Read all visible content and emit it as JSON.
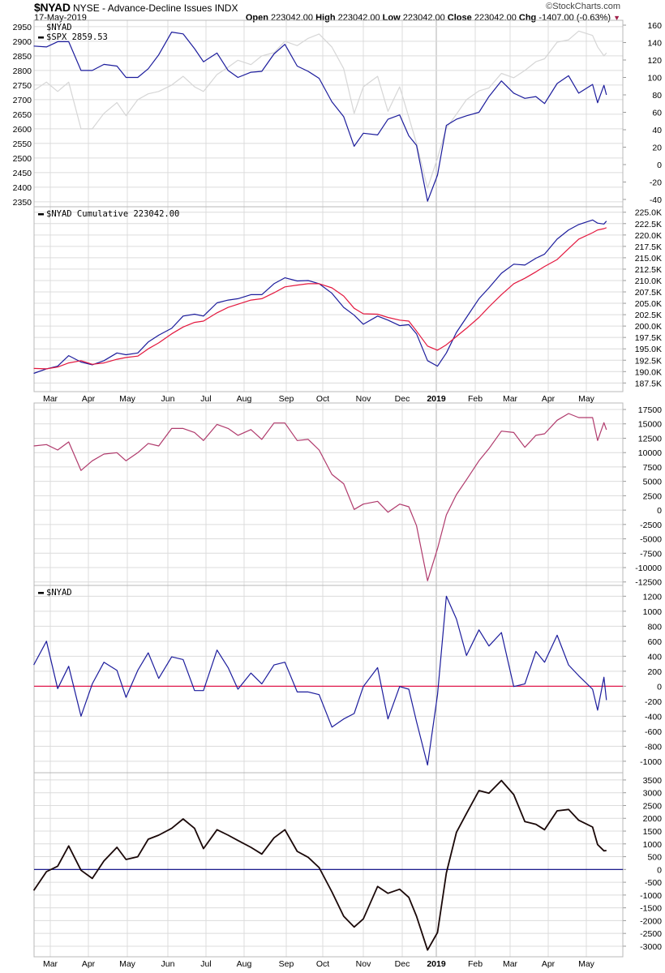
{
  "header": {
    "symbol": "$NYAD",
    "description": "NYSE - Advance-Decline Issues",
    "exchange": "INDX",
    "date": "17-May-2019",
    "open_label": "Open",
    "open": "223042.00",
    "high_label": "High",
    "high": "223042.00",
    "low_label": "Low",
    "low": "223042.00",
    "close_label": "Close",
    "close": "223042.00",
    "chg_label": "Chg",
    "chg": "-1407.00 (-0.63%)",
    "chg_direction_icon": "down-triangle-icon",
    "brand": "©StockCharts.com"
  },
  "colors": {
    "nyad": "#1c1c9c",
    "spx": "#d6d6d6",
    "ma": "#e3173e",
    "panel3": "#b03a6c",
    "oscillator": "#1c1c9c",
    "zero_line_red": "#e0003a",
    "smoothed": "#1a0808",
    "zero_line_navy": "#000080",
    "grid": "#dcdcdc"
  },
  "chart_data": {
    "type": "line",
    "x_month_labels": [
      "Mar",
      "Apr",
      "May",
      "Jun",
      "Jul",
      "Aug",
      "Sep",
      "Oct",
      "Nov",
      "Dec",
      "2019",
      "Feb",
      "Mar",
      "Apr",
      "May"
    ],
    "dates": [
      "2018-02-16",
      "2018-02-26",
      "2018-03-07",
      "2018-03-16",
      "2018-03-26",
      "2018-04-04",
      "2018-04-13",
      "2018-04-23",
      "2018-04-30",
      "2018-05-09",
      "2018-05-17",
      "2018-05-25",
      "2018-06-04",
      "2018-06-13",
      "2018-06-22",
      "2018-06-29",
      "2018-07-10",
      "2018-07-19",
      "2018-07-27",
      "2018-08-06",
      "2018-08-14",
      "2018-08-23",
      "2018-08-31",
      "2018-09-10",
      "2018-09-19",
      "2018-09-28",
      "2018-10-08",
      "2018-10-17",
      "2018-10-25",
      "2018-11-01",
      "2018-11-12",
      "2018-11-20",
      "2018-11-29",
      "2018-12-07",
      "2018-12-14",
      "2018-12-24",
      "2019-01-02",
      "2019-01-09",
      "2019-01-17",
      "2019-01-25",
      "2019-02-04",
      "2019-02-12",
      "2019-02-22",
      "2019-03-04",
      "2019-03-13",
      "2019-03-22",
      "2019-03-29",
      "2019-04-08",
      "2019-04-17",
      "2019-04-25",
      "2019-05-06",
      "2019-05-10",
      "2019-05-15",
      "2019-05-17"
    ],
    "grid": true,
    "panels": [
      {
        "legend": [
          "$NYAD",
          "$SPX 2859.53"
        ],
        "axes": {
          "left": {
            "ylim": [
              2333,
              2972
            ],
            "ticks": [
              "2350",
              "2400",
              "2450",
              "2500",
              "2550",
              "2600",
              "2650",
              "2700",
              "2750",
              "2800",
              "2850",
              "2900",
              "2950"
            ]
          },
          "right": {
            "ylim": [
              -48.4,
              165.6
            ],
            "ticks": [
              "-40",
              "-20",
              "0",
              "20",
              "40",
              "60",
              "80",
              "100",
              "120",
              "140",
              "160"
            ]
          }
        },
        "series": [
          {
            "name": "$SPX",
            "axis": "left",
            "color_key": "spx",
            "values": [
              2731,
              2760,
              2728,
              2760,
              2600,
              2600,
              2653,
              2690,
              2645,
              2700,
              2720,
              2728,
              2750,
              2780,
              2744,
              2728,
              2786,
              2811,
              2835,
              2820,
              2850,
              2861,
              2900,
              2885,
              2910,
              2925,
              2880,
              2806,
              2653,
              2744,
              2780,
              2660,
              2744,
              2640,
              2550,
              2397,
              2500,
              2603,
              2650,
              2700,
              2730,
              2740,
              2790,
              2775,
              2800,
              2830,
              2840,
              2897,
              2905,
              2935,
              2920,
              2881,
              2850,
              2860
            ]
          },
          {
            "name": "$NYAD",
            "axis": "right",
            "color_key": "nyad",
            "values": [
              136,
              135,
              141,
              141,
              108,
              108,
              115,
              113,
              100,
              100,
              110,
              126,
              152,
              150,
              133,
              118,
              128,
              108,
              100,
              106,
              107,
              127,
              138,
              113,
              107,
              99,
              72,
              55,
              21,
              36,
              34,
              52,
              57,
              33,
              22,
              -42,
              -12,
              45,
              52,
              56,
              60,
              78,
              96,
              82,
              76,
              78,
              70,
              93,
              102,
              82,
              92,
              71,
              91,
              80
            ]
          }
        ]
      },
      {
        "legend": [
          "$NYAD Cumulative 223042.00"
        ],
        "axes": {
          "right": {
            "ylim": [
              185600,
              226200
            ],
            "ticks": [
              "187.5K",
              "190.0K",
              "192.5K",
              "195.0K",
              "197.5K",
              "200.0K",
              "202.5K",
              "205.0K",
              "207.5K",
              "210.0K",
              "212.5K",
              "215.0K",
              "217.5K",
              "220.0K",
              "222.5K",
              "225.0K"
            ],
            "tick_values": [
              187500,
              190000,
              192500,
              195000,
              197500,
              200000,
              202500,
              205000,
              207500,
              210000,
              212500,
              215000,
              217500,
              220000,
              222500,
              225000
            ]
          }
        },
        "series": [
          {
            "name": "$NYAD Cumulative",
            "axis": "right",
            "color_key": "nyad",
            "values": [
              189600,
              190600,
              191200,
              193500,
              192100,
              191500,
              192400,
              194100,
              193700,
              194100,
              196500,
              198000,
              199500,
              202200,
              202600,
              202200,
              205100,
              205700,
              206000,
              206900,
              206900,
              209300,
              210600,
              209900,
              210000,
              209300,
              207200,
              204100,
              202400,
              200400,
              202200,
              201300,
              200100,
              200300,
              198300,
              192400,
              191200,
              194100,
              198600,
              201900,
              206000,
              208400,
              211600,
              213600,
              213400,
              214900,
              215800,
              219100,
              221100,
              222300,
              223300,
              222600,
              222400,
              223042
            ]
          },
          {
            "axis": "right",
            "color_key": "ma",
            "values": [
              190700,
              190600,
              191000,
              191900,
              192400,
              191600,
              191900,
              192700,
              193100,
              193400,
              195000,
              196300,
              198300,
              199800,
              200800,
              201100,
              202900,
              204100,
              204800,
              205700,
              206000,
              207300,
              208600,
              209000,
              209300,
              209300,
              208400,
              206600,
              203900,
              202700,
              202600,
              201900,
              201300,
              201100,
              198900,
              195600,
              194700,
              195900,
              197700,
              199500,
              201900,
              204200,
              206900,
              209300,
              210500,
              211900,
              213100,
              214600,
              217000,
              219100,
              220500,
              221100,
              221400,
              221600
            ]
          }
        ]
      },
      {
        "legend": [],
        "axes": {
          "right": {
            "ylim": [
              -13100,
              18630
            ],
            "ticks": [
              "-12500",
              "-10000",
              "-7500",
              "-5000",
              "-2500",
              "0",
              "2500",
              "5000",
              "7500",
              "10000",
              "12500",
              "15000",
              "17500"
            ]
          }
        },
        "series": [
          {
            "axis": "right",
            "color_key": "panel3",
            "values": [
              11150,
              11400,
              10450,
              11860,
              6900,
              8570,
              9750,
              9980,
              8570,
              9980,
              11600,
              11150,
              14200,
              14200,
              13500,
              12100,
              14900,
              14200,
              13000,
              14000,
              12300,
              15150,
              15150,
              12100,
              12300,
              10450,
              6200,
              4580,
              110,
              1050,
              1520,
              -360,
              1050,
              580,
              -2710,
              -12300,
              -6700,
              -830,
              2700,
              5280,
              8570,
              10690,
              13740,
              13500,
              10920,
              13000,
              13270,
              15620,
              16800,
              16090,
              16090,
              12100,
              15200,
              13970
            ]
          }
        ]
      },
      {
        "legend": [
          "$NYAD"
        ],
        "axes": {
          "right": {
            "ylim": [
              -1153,
              1344
            ],
            "ticks": [
              "-1000",
              "-800",
              "-600",
              "-400",
              "-200",
              "0",
              "200",
              "400",
              "600",
              "800",
              "1000",
              "1200"
            ]
          }
        },
        "zero_line": {
          "value": 0,
          "color_key": "zero_line_red"
        },
        "series": [
          {
            "axis": "right",
            "color_key": "oscillator",
            "values": [
              284,
              600,
              -32,
              266,
              -400,
              32,
              320,
              212,
              -148,
              212,
              446,
              104,
              392,
              356,
              -58,
              -58,
              482,
              248,
              -40,
              176,
              32,
              284,
              320,
              -76,
              -76,
              -112,
              -544,
              -436,
              -364,
              -4,
              248,
              -436,
              -4,
              -40,
              -472,
              -1050,
              -112,
              1200,
              896,
              410,
              752,
              536,
              716,
              -4,
              32,
              464,
              320,
              680,
              284,
              140,
              -40,
              -320,
              120,
              -184
            ]
          }
        ]
      },
      {
        "legend": [],
        "axes": {
          "right": {
            "ylim": [
              -3414,
              3783
            ],
            "ticks": [
              "-3000",
              "-2500",
              "-2000",
              "-1500",
              "-1000",
              "-500",
              "0",
              "500",
              "1000",
              "1500",
              "2000",
              "2500",
              "3000",
              "3500"
            ]
          }
        },
        "zero_line": {
          "value": 0,
          "color_key": "zero_line_navy"
        },
        "series": [
          {
            "axis": "right",
            "color_key": "smoothed",
            "values": [
              -824,
              -85,
              127,
              920,
              -32,
              -350,
              338,
              867,
              391,
              497,
              1184,
              1342,
              1607,
              1977,
              1607,
              814,
              1554,
              1342,
              1131,
              867,
              602,
              1237,
              1554,
              708,
              476,
              74,
              -877,
              -1829,
              -2251,
              -1934,
              -666,
              -930,
              -772,
              -1089,
              -1829,
              -3150,
              -2463,
              -137,
              1448,
              2188,
              3086,
              2981,
              3478,
              2928,
              1871,
              1765,
              1554,
              2294,
              2347,
              1924,
              1660,
              973,
              729,
              740
            ]
          }
        ]
      }
    ]
  }
}
